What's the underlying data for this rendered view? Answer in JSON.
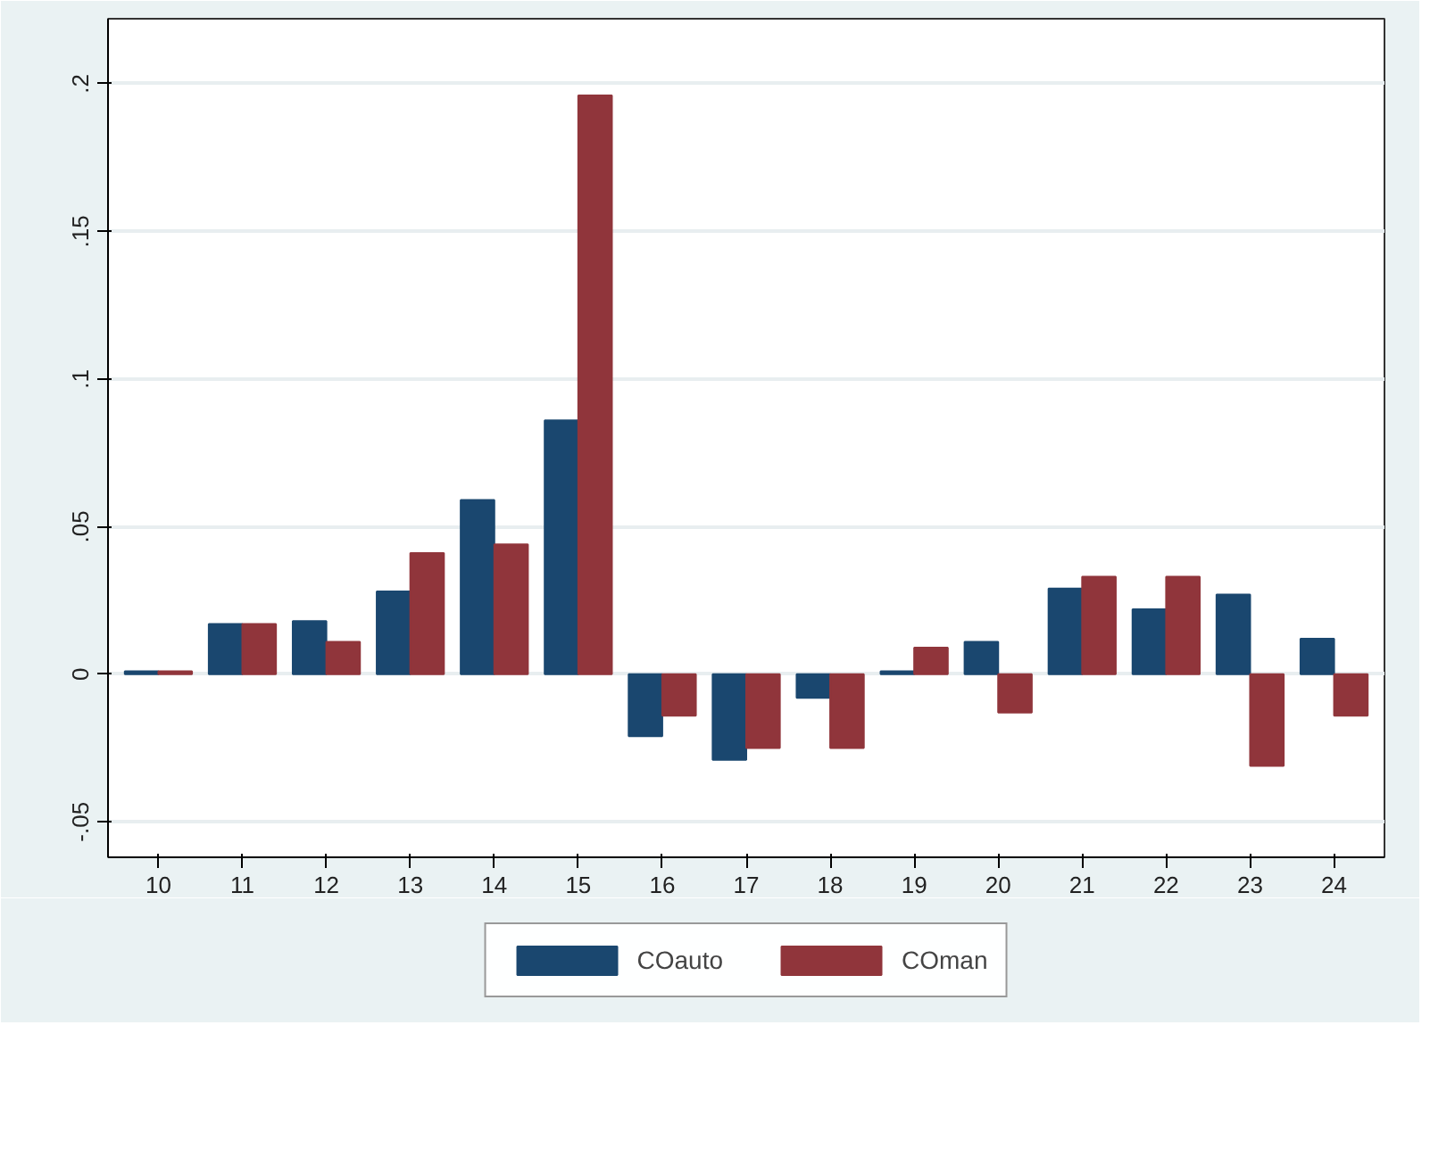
{
  "chart_data": {
    "type": "bar",
    "categories": [
      "10",
      "11",
      "12",
      "13",
      "14",
      "15",
      "16",
      "17",
      "18",
      "19",
      "20",
      "21",
      "22",
      "23",
      "24"
    ],
    "series": [
      {
        "name": "COauto",
        "color": "#1a476f",
        "values": [
          0.001,
          0.017,
          0.018,
          0.028,
          0.059,
          0.086,
          -0.021,
          -0.029,
          -0.008,
          0.001,
          0.011,
          0.029,
          0.022,
          0.027,
          0.012
        ]
      },
      {
        "name": "COman",
        "color": "#90353b",
        "values": [
          0.001,
          0.017,
          0.011,
          0.041,
          0.044,
          0.196,
          -0.014,
          -0.025,
          -0.025,
          0.009,
          -0.013,
          0.033,
          0.033,
          -0.031,
          -0.014
        ]
      }
    ],
    "ylim": [
      -0.062,
      0.222
    ],
    "yticks": [
      {
        "value": -0.05,
        "label": "-.05"
      },
      0,
      {
        "value": 0.05,
        "label": ".05"
      },
      {
        "value": 0.1,
        "label": ".1"
      },
      {
        "value": 0.15,
        "label": ".15"
      },
      {
        "value": 0.2,
        "label": ".2"
      }
    ],
    "grid": "y",
    "legend": "bottom"
  }
}
